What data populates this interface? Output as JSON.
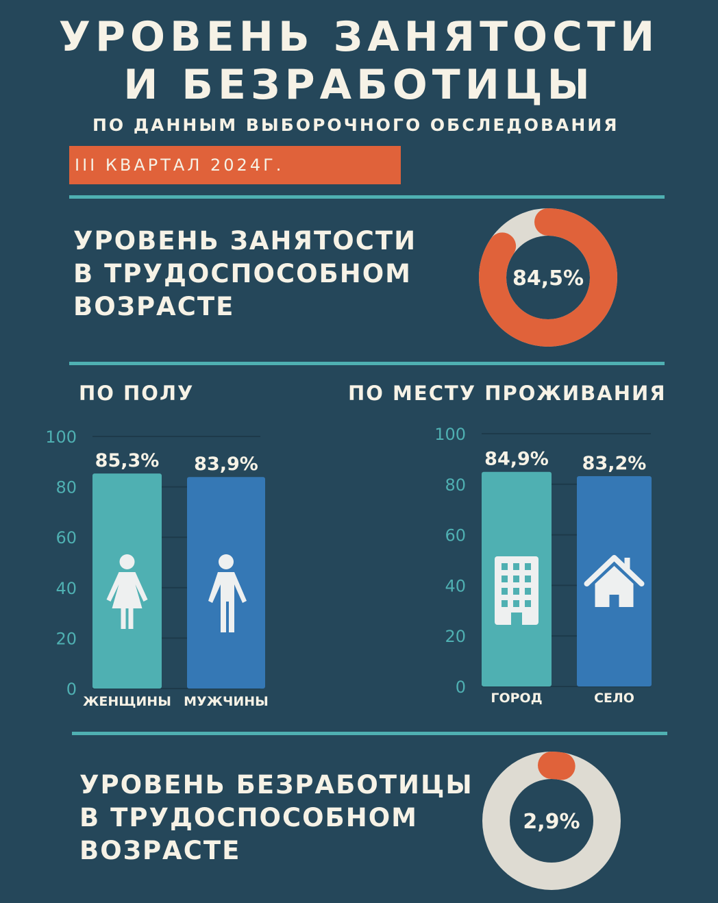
{
  "header": {
    "title_line1": "УРОВЕНЬ ЗАНЯТОСТИ",
    "title_line2": "И БЕЗРАБОТИЦЫ",
    "subtitle": "ПО ДАННЫМ ВЫБОРОЧНОГО ОБСЛЕДОВАНИЯ",
    "period": "III КВАРТАЛ 2024Г."
  },
  "employment": {
    "heading_lines": [
      "УРОВЕНЬ ЗАНЯТОСТИ",
      "В ТРУДОСПОСОБНОМ",
      "ВОЗРАСТЕ"
    ]
  },
  "unemployment": {
    "heading_lines": [
      "УРОВЕНЬ БЕЗРАБОТИЦЫ",
      "В ТРУДОСПОСОБНОМ",
      "ВОЗРАСТЕ"
    ]
  },
  "colors": {
    "background": "#25475a",
    "accent_orange": "#e0623a",
    "teal": "#4fb0b2",
    "blue": "#3578b5",
    "ring_grey": "#dedbd2",
    "text": "#f6f2e6"
  },
  "chart_data": [
    {
      "type": "pie",
      "style": "donut",
      "value": 84.5,
      "label": "84,5%",
      "colors": {
        "value": "#e0623a",
        "rest": "#dedbd2"
      }
    },
    {
      "type": "bar",
      "title": "ПО ПОЛУ",
      "categories": [
        "ЖЕНЩИНЫ",
        "МУЖЧИНЫ"
      ],
      "values": [
        85.3,
        83.9
      ],
      "data_labels": [
        "85,3%",
        "83,9%"
      ],
      "bar_colors": [
        "#4fb0b2",
        "#3578b5"
      ],
      "icons": [
        "woman-icon",
        "man-icon"
      ],
      "ylim": [
        0,
        100
      ],
      "yticks": [
        "0",
        "20",
        "40",
        "60",
        "80",
        "100"
      ],
      "grid": true
    },
    {
      "type": "bar",
      "title": "ПО МЕСТУ ПРОЖИВАНИЯ",
      "categories": [
        "ГОРОД",
        "СЕЛО"
      ],
      "values": [
        84.9,
        83.2
      ],
      "data_labels": [
        "84,9%",
        "83,2%"
      ],
      "bar_colors": [
        "#4fb0b2",
        "#3578b5"
      ],
      "icons": [
        "building-icon",
        "house-icon"
      ],
      "ylim": [
        0,
        100
      ],
      "yticks": [
        "0",
        "20",
        "40",
        "60",
        "80",
        "100"
      ],
      "grid": true
    },
    {
      "type": "pie",
      "style": "donut",
      "value": 2.9,
      "label": "2,9%",
      "colors": {
        "value": "#e0623a",
        "rest": "#dedbd2"
      }
    }
  ]
}
